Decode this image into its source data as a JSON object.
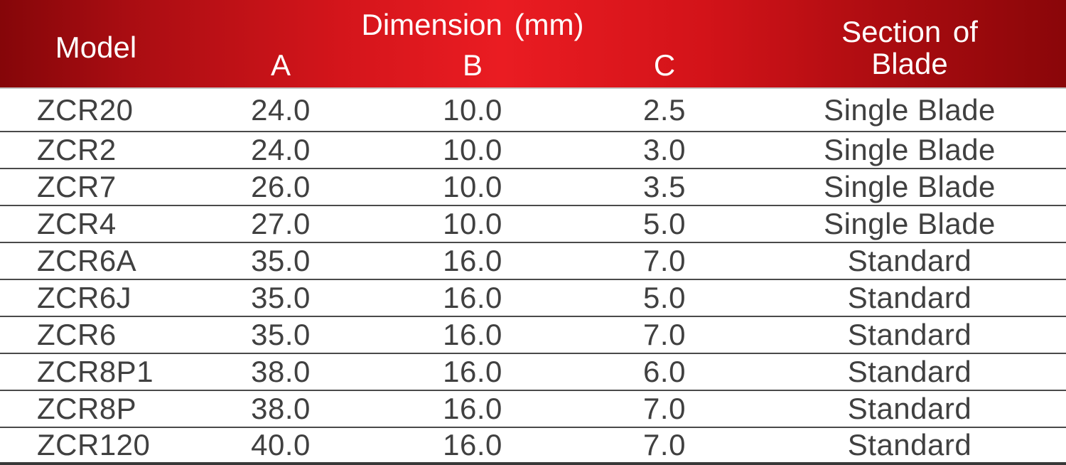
{
  "header": {
    "model": "Model",
    "dimension_group": "Dimension (mm)",
    "col_a": "A",
    "col_b": "B",
    "col_c": "C",
    "section_line1": "Section of",
    "section_line2": "Blade"
  },
  "chart_data": {
    "type": "table",
    "columns": [
      "Model",
      "Dimension (mm) A",
      "Dimension (mm) B",
      "Dimension (mm) C",
      "Section of Blade"
    ],
    "rows": [
      {
        "model": "ZCR20",
        "a": "24.0",
        "b": "10.0",
        "c": "2.5",
        "section": "Single Blade"
      },
      {
        "model": "ZCR2",
        "a": "24.0",
        "b": "10.0",
        "c": "3.0",
        "section": "Single Blade"
      },
      {
        "model": "ZCR7",
        "a": "26.0",
        "b": "10.0",
        "c": "3.5",
        "section": "Single Blade"
      },
      {
        "model": "ZCR4",
        "a": "27.0",
        "b": "10.0",
        "c": "5.0",
        "section": "Single Blade"
      },
      {
        "model": "ZCR6A",
        "a": "35.0",
        "b": "16.0",
        "c": "7.0",
        "section": "Standard"
      },
      {
        "model": "ZCR6J",
        "a": "35.0",
        "b": "16.0",
        "c": "5.0",
        "section": "Standard"
      },
      {
        "model": "ZCR6",
        "a": "35.0",
        "b": "16.0",
        "c": "7.0",
        "section": "Standard"
      },
      {
        "model": "ZCR8P1",
        "a": "38.0",
        "b": "16.0",
        "c": "6.0",
        "section": "Standard"
      },
      {
        "model": "ZCR8P",
        "a": "38.0",
        "b": "16.0",
        "c": "7.0",
        "section": "Standard"
      },
      {
        "model": "ZCR120",
        "a": "40.0",
        "b": "16.0",
        "c": "7.0",
        "section": "Standard"
      }
    ]
  },
  "colors": {
    "header_gradient_left": "#850609",
    "header_gradient_mid": "#ea1c22",
    "header_gradient_right": "#8a0609",
    "header_text": "#ffffff",
    "body_text": "#404040",
    "row_divider": "#4a4a4a",
    "bottom_border": "#383838"
  }
}
